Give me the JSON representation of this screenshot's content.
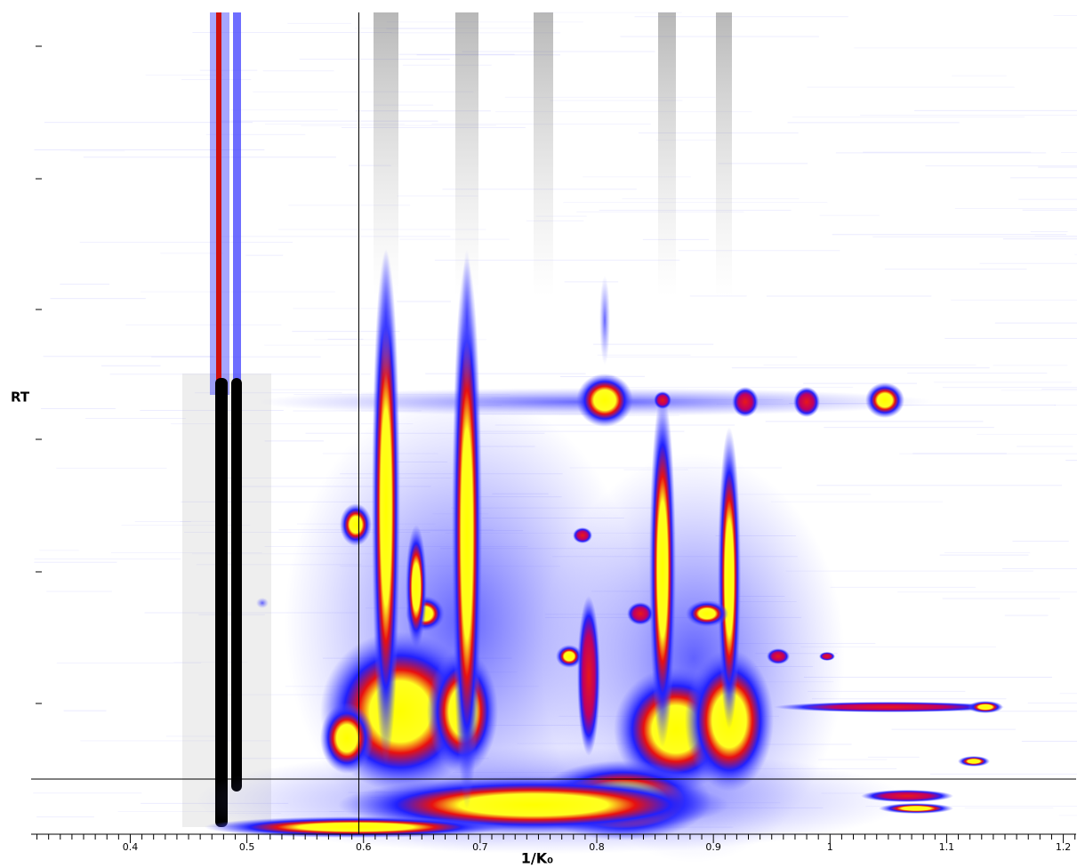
{
  "chart_data": {
    "type": "heatmap",
    "x_label": "1/K₀",
    "y_label": "RT",
    "xlim": [
      0.315,
      1.211
    ],
    "xticks": [
      0.4,
      0.5,
      0.6,
      0.7,
      0.8,
      0.9,
      1,
      1.1,
      1.2
    ],
    "xminor_ticks": [
      0.32,
      0.33,
      0.34,
      0.35,
      0.36,
      0.37,
      0.38,
      0.39,
      0.41,
      0.42,
      0.43,
      0.44,
      0.45,
      0.46,
      0.47,
      0.48,
      0.49,
      0.51,
      0.52,
      0.53,
      0.54,
      0.55,
      0.56,
      0.57,
      0.58,
      0.59,
      0.61,
      0.62,
      0.63,
      0.64,
      0.65,
      0.66,
      0.67,
      0.68,
      0.69,
      0.71,
      0.72,
      0.73,
      0.74,
      0.75,
      0.76,
      0.77,
      0.78,
      0.79,
      0.81,
      0.82,
      0.83,
      0.84,
      0.85,
      0.86,
      0.87,
      0.88,
      0.89,
      0.91,
      0.92,
      0.93,
      0.94,
      0.95,
      0.96,
      0.97,
      0.98,
      0.99,
      1.01,
      1.02,
      1.03,
      1.04,
      1.05,
      1.06,
      1.07,
      1.08,
      1.09,
      1.11,
      1.12,
      1.13,
      1.14,
      1.15,
      1.16,
      1.17,
      1.18,
      1.19,
      1.21
    ],
    "crosshair_x": 0.596
  }
}
